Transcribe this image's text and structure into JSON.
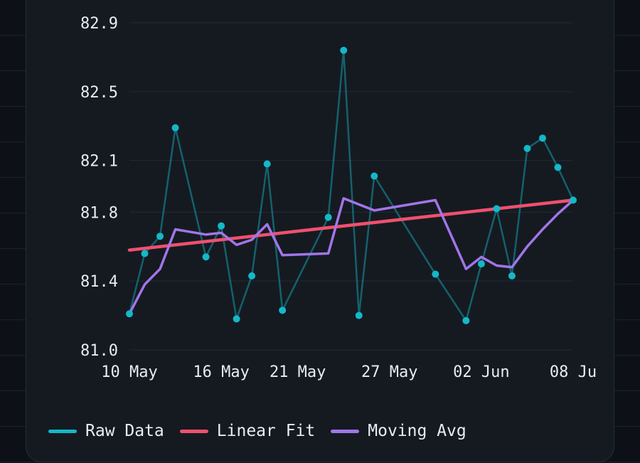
{
  "chart_data": {
    "type": "line",
    "title": "",
    "xlabel": "",
    "ylabel": "",
    "ylim": [
      81.0,
      82.9
    ],
    "y_ticks": [
      "82.9",
      "82.5",
      "82.1",
      "81.8",
      "81.4",
      "81.0"
    ],
    "x_ticks": [
      "10 May",
      "16 May",
      "21 May",
      "27 May",
      "02 Jun",
      "08 Ju"
    ],
    "grid": true,
    "legend_placement": "bottom-left",
    "series": [
      {
        "name": "Raw Data",
        "color": "#14b8c8",
        "style": "line-with-markers",
        "points": [
          {
            "x": "2024-05-10",
            "y": 81.21
          },
          {
            "x": "2024-05-11",
            "y": 81.56
          },
          {
            "x": "2024-05-12",
            "y": 81.66
          },
          {
            "x": "2024-05-13",
            "y": 82.29
          },
          {
            "x": "2024-05-15",
            "y": 81.54
          },
          {
            "x": "2024-05-16",
            "y": 81.72
          },
          {
            "x": "2024-05-17",
            "y": 81.18
          },
          {
            "x": "2024-05-18",
            "y": 81.43
          },
          {
            "x": "2024-05-19",
            "y": 82.08
          },
          {
            "x": "2024-05-20",
            "y": 81.23
          },
          {
            "x": "2024-05-23",
            "y": 81.77
          },
          {
            "x": "2024-05-24",
            "y": 82.74
          },
          {
            "x": "2024-05-25",
            "y": 81.2
          },
          {
            "x": "2024-05-26",
            "y": 82.01
          },
          {
            "x": "2024-05-30",
            "y": 81.44
          },
          {
            "x": "2024-06-01",
            "y": 81.17
          },
          {
            "x": "2024-06-02",
            "y": 81.5
          },
          {
            "x": "2024-06-03",
            "y": 81.82
          },
          {
            "x": "2024-06-04",
            "y": 81.43
          },
          {
            "x": "2024-06-05",
            "y": 82.17
          },
          {
            "x": "2024-06-06",
            "y": 82.23
          },
          {
            "x": "2024-06-07",
            "y": 82.06
          },
          {
            "x": "2024-06-08",
            "y": 81.87
          }
        ]
      },
      {
        "name": "Linear Fit",
        "color": "#f0506e",
        "style": "line",
        "points": [
          {
            "x": "2024-05-10",
            "y": 81.58
          },
          {
            "x": "2024-06-08",
            "y": 81.87
          }
        ]
      },
      {
        "name": "Moving Avg",
        "color": "#a275e8",
        "style": "line",
        "points": [
          {
            "x": "2024-05-10",
            "y": 81.21
          },
          {
            "x": "2024-05-11",
            "y": 81.38
          },
          {
            "x": "2024-05-12",
            "y": 81.47
          },
          {
            "x": "2024-05-13",
            "y": 81.7
          },
          {
            "x": "2024-05-15",
            "y": 81.67
          },
          {
            "x": "2024-05-16",
            "y": 81.68
          },
          {
            "x": "2024-05-17",
            "y": 81.61
          },
          {
            "x": "2024-05-18",
            "y": 81.64
          },
          {
            "x": "2024-05-19",
            "y": 81.73
          },
          {
            "x": "2024-05-20",
            "y": 81.55
          },
          {
            "x": "2024-05-23",
            "y": 81.56
          },
          {
            "x": "2024-05-24",
            "y": 81.88
          },
          {
            "x": "2024-05-26",
            "y": 81.81
          },
          {
            "x": "2024-05-30",
            "y": 81.87
          },
          {
            "x": "2024-06-01",
            "y": 81.47
          },
          {
            "x": "2024-06-02",
            "y": 81.54
          },
          {
            "x": "2024-06-03",
            "y": 81.49
          },
          {
            "x": "2024-06-04",
            "y": 81.48
          },
          {
            "x": "2024-06-05",
            "y": 81.6
          },
          {
            "x": "2024-06-06",
            "y": 81.7
          },
          {
            "x": "2024-06-07",
            "y": 81.79
          },
          {
            "x": "2024-06-08",
            "y": 81.87
          }
        ]
      }
    ]
  },
  "legend": {
    "raw_label": "Raw Data",
    "fit_label": "Linear Fit",
    "avg_label": "Moving Avg"
  }
}
